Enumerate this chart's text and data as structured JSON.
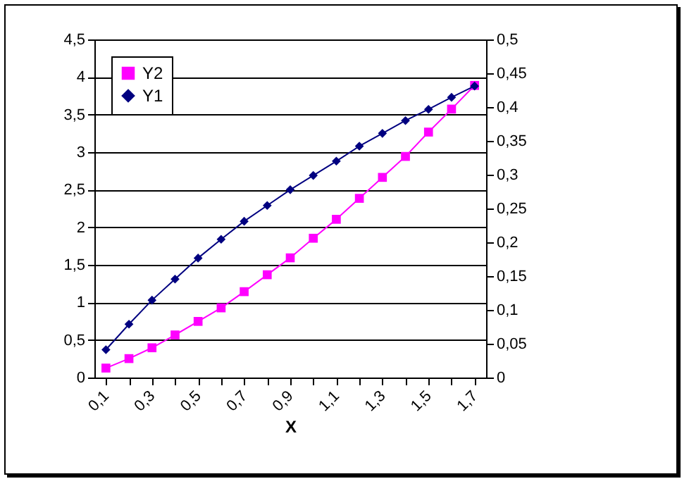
{
  "chart_data": {
    "type": "line",
    "xlabel": "X",
    "categories": [
      "0,1",
      null,
      "0,3",
      null,
      "0,5",
      null,
      "0,7",
      null,
      "0,9",
      null,
      "1,1",
      null,
      "1,3",
      null,
      "1,5",
      null,
      "1,7"
    ],
    "series": [
      {
        "name": "Y2",
        "color": "#ff00ff",
        "axis": "y2",
        "marker": "square",
        "values": [
          0.014,
          0.028,
          0.044,
          0.063,
          0.083,
          0.103,
          0.127,
          0.152,
          0.177,
          0.206,
          0.234,
          0.265,
          0.296,
          0.327,
          0.363,
          0.397,
          0.432
        ]
      },
      {
        "name": "Y1",
        "color": "#000080",
        "marker": "diamond",
        "values": [
          0.37,
          0.71,
          1.03,
          1.31,
          1.59,
          1.84,
          2.08,
          2.29,
          2.5,
          2.69,
          2.88,
          3.08,
          3.25,
          3.42,
          3.57,
          3.73,
          3.88
        ]
      }
    ],
    "ylim": [
      0,
      4.5
    ],
    "yticks": [
      0,
      {
        "value": 0.5,
        "label": "0,5"
      },
      1,
      {
        "value": 1.5,
        "label": "1,5"
      },
      2,
      {
        "value": 2.5,
        "label": "2,5"
      },
      3,
      {
        "value": 3.5,
        "label": "3,5"
      },
      4,
      {
        "value": 4.5,
        "label": "4,5"
      }
    ],
    "y2lim": [
      0,
      0.5
    ],
    "y2ticks": [
      0,
      {
        "value": 0.05,
        "label": "0,05"
      },
      {
        "value": 0.1,
        "label": "0,1"
      },
      {
        "value": 0.15,
        "label": "0,15"
      },
      {
        "value": 0.2,
        "label": "0,2"
      },
      {
        "value": 0.25,
        "label": "0,25"
      },
      {
        "value": 0.3,
        "label": "0,3"
      },
      {
        "value": 0.35,
        "label": "0,35"
      },
      {
        "value": 0.4,
        "label": "0,4"
      },
      {
        "value": 0.45,
        "label": "0,45"
      },
      {
        "value": 0.5,
        "label": "0,5"
      }
    ],
    "grid": "y",
    "legend": "top left",
    "line_style": "solid"
  }
}
